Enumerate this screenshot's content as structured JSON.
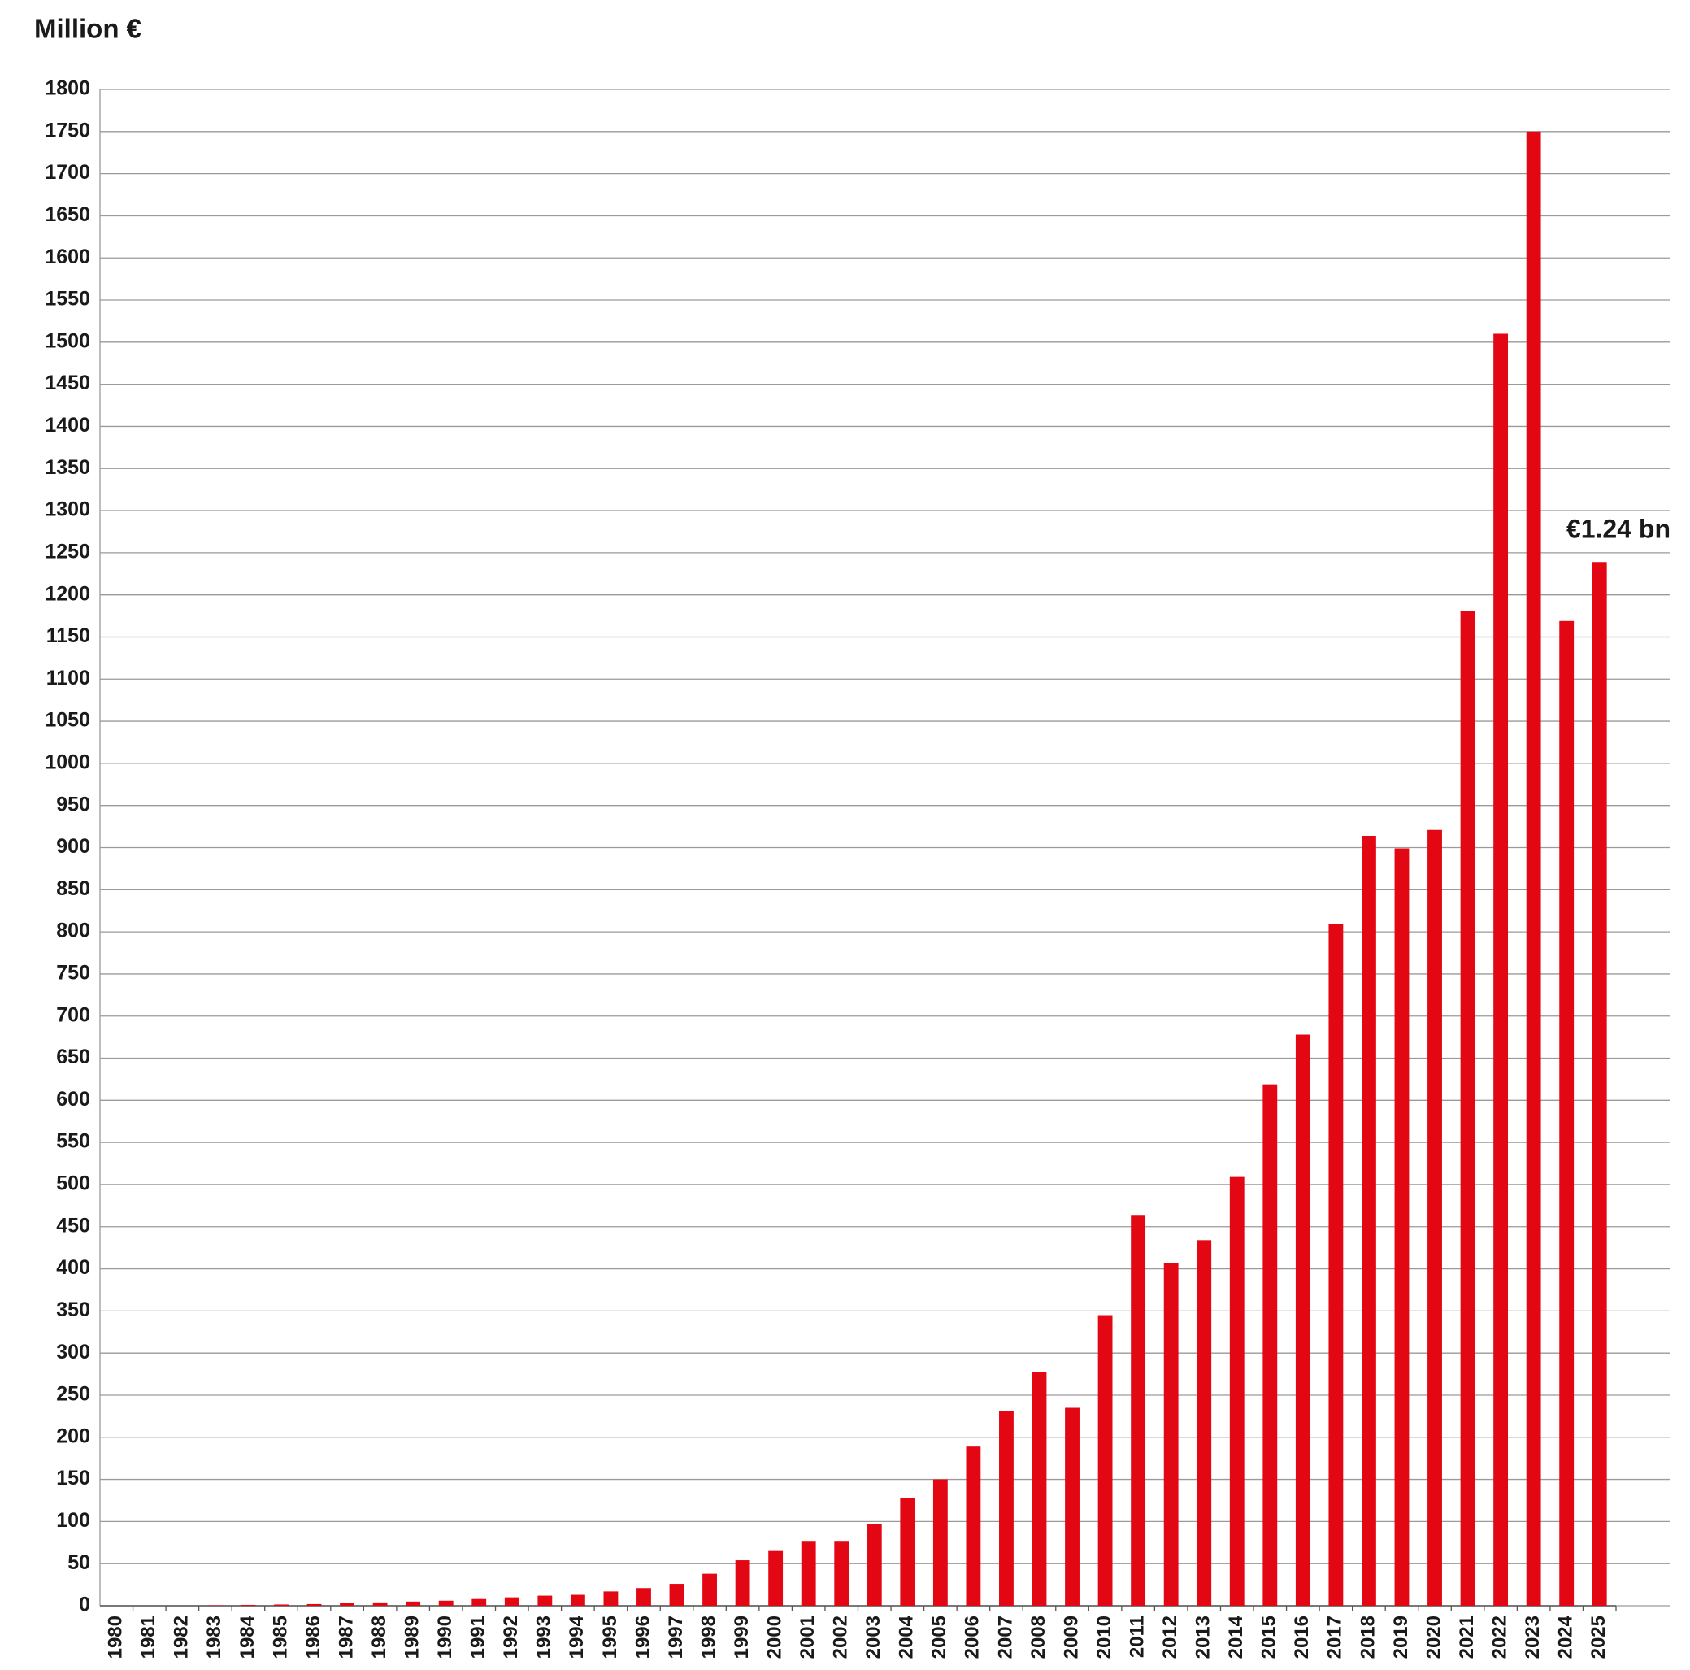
{
  "chart_data": {
    "type": "bar",
    "title": "Million €",
    "annotation": "€1.24 bn",
    "categories": [
      "1980",
      "1981",
      "1982",
      "1983",
      "1984",
      "1985",
      "1986",
      "1987",
      "1988",
      "1989",
      "1990",
      "1991",
      "1992",
      "1993",
      "1994",
      "1995",
      "1996",
      "1997",
      "1998",
      "1999",
      "2000",
      "2001",
      "2002",
      "2003",
      "2004",
      "2005",
      "2006",
      "2007",
      "2008",
      "2009",
      "2010",
      "2011",
      "2012",
      "2013",
      "2014",
      "2015",
      "2016",
      "2017",
      "2018",
      "2019",
      "2020",
      "2021",
      "2022",
      "2023",
      "2024",
      "2025"
    ],
    "values": [
      0,
      0,
      0,
      0.5,
      1,
      1.5,
      2,
      3,
      4,
      5,
      6,
      8,
      10,
      12,
      13,
      17,
      21,
      26,
      38,
      54,
      65,
      77,
      77,
      97,
      128,
      150,
      189,
      231,
      277,
      235,
      345,
      464,
      407,
      434,
      509,
      619,
      678,
      809,
      914,
      899,
      921,
      1181,
      1510,
      1750,
      1169,
      1239
    ],
    "color": "#e30613",
    "ylim": [
      0,
      1800
    ],
    "yticks": [
      0,
      50,
      100,
      150,
      200,
      250,
      300,
      350,
      400,
      450,
      500,
      550,
      600,
      650,
      700,
      750,
      800,
      850,
      900,
      950,
      1000,
      1050,
      1100,
      1150,
      1200,
      1250,
      1300,
      1350,
      1400,
      1450,
      1500,
      1550,
      1600,
      1650,
      1700,
      1750,
      1800
    ],
    "grid": true
  }
}
